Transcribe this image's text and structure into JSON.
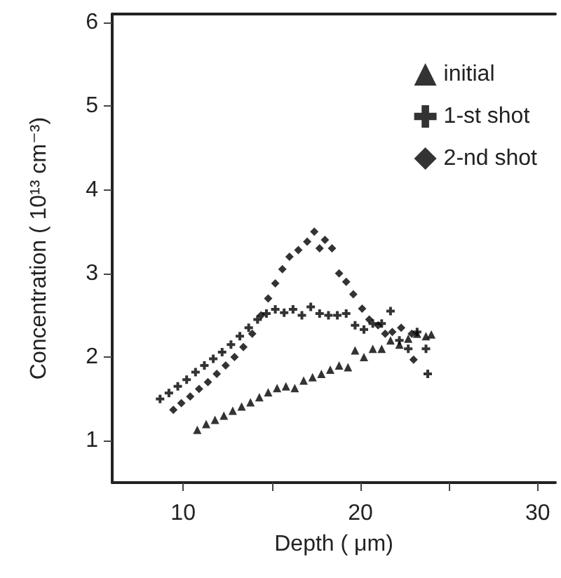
{
  "chart_data": {
    "type": "scatter",
    "xlabel": "Depth ( μm)",
    "ylabel": "Concentration ( 10¹³ cm⁻³)",
    "xlim": [
      6,
      31
    ],
    "xticks": [
      10,
      {
        "value": 15,
        "label": null
      },
      20,
      {
        "value": 25,
        "label": null
      },
      30
    ],
    "ylim": [
      0.5,
      6.1
    ],
    "yticks": [
      1,
      2,
      3,
      4,
      5,
      6
    ],
    "grid": false,
    "legend": "top right",
    "series": [
      {
        "name": "initial",
        "color": "#000000",
        "marker": "triangle",
        "x": [
          10.8,
          11.3,
          11.8,
          12.3,
          12.8,
          13.3,
          13.8,
          14.3,
          14.8,
          15.3,
          15.8,
          16.3,
          16.8,
          17.3,
          17.8,
          18.3,
          18.8,
          19.3,
          19.7,
          20.2,
          20.7,
          21.2,
          21.7,
          22.2,
          22.7,
          23.2,
          23.7,
          24.0
        ],
        "values": [
          1.13,
          1.2,
          1.25,
          1.3,
          1.36,
          1.41,
          1.46,
          1.52,
          1.58,
          1.63,
          1.65,
          1.63,
          1.72,
          1.76,
          1.8,
          1.85,
          1.9,
          1.88,
          2.08,
          2.0,
          2.1,
          2.1,
          2.2,
          2.15,
          2.22,
          2.28,
          2.25,
          2.27
        ]
      },
      {
        "name": "1-st shot",
        "color": "#000000",
        "marker": "cross",
        "x": [
          8.7,
          9.2,
          9.7,
          10.2,
          10.7,
          11.2,
          11.7,
          12.2,
          12.7,
          13.2,
          13.7,
          14.2,
          14.7,
          15.2,
          15.7,
          16.2,
          16.7,
          17.2,
          17.7,
          18.2,
          18.7,
          19.2,
          19.7,
          20.2,
          20.7,
          21.2,
          21.7,
          22.2,
          22.7,
          23.2,
          23.7,
          23.8
        ],
        "values": [
          1.5,
          1.57,
          1.65,
          1.73,
          1.82,
          1.9,
          1.98,
          2.06,
          2.15,
          2.25,
          2.35,
          2.45,
          2.52,
          2.57,
          2.53,
          2.57,
          2.5,
          2.6,
          2.52,
          2.5,
          2.5,
          2.52,
          2.38,
          2.33,
          2.4,
          2.4,
          2.55,
          2.2,
          2.1,
          2.3,
          2.1,
          1.8
        ]
      },
      {
        "name": "2-nd shot",
        "color": "#000000",
        "marker": "diamond",
        "x": [
          9.45,
          9.9,
          10.4,
          10.9,
          11.4,
          11.9,
          12.4,
          12.9,
          13.4,
          13.9,
          14.4,
          14.8,
          15.2,
          15.6,
          16.0,
          16.5,
          17.0,
          17.4,
          17.7,
          18.0,
          18.4,
          18.8,
          19.2,
          19.6,
          20.1,
          20.5,
          21.0,
          21.4,
          21.8,
          22.3,
          22.9,
          23.0
        ],
        "values": [
          1.37,
          1.45,
          1.53,
          1.62,
          1.7,
          1.8,
          1.9,
          2.0,
          2.12,
          2.28,
          2.5,
          2.7,
          2.88,
          3.05,
          3.2,
          3.28,
          3.38,
          3.5,
          3.3,
          3.4,
          3.3,
          3.0,
          2.9,
          2.75,
          2.58,
          2.45,
          2.38,
          2.28,
          2.3,
          2.35,
          2.28,
          1.97
        ]
      }
    ]
  }
}
